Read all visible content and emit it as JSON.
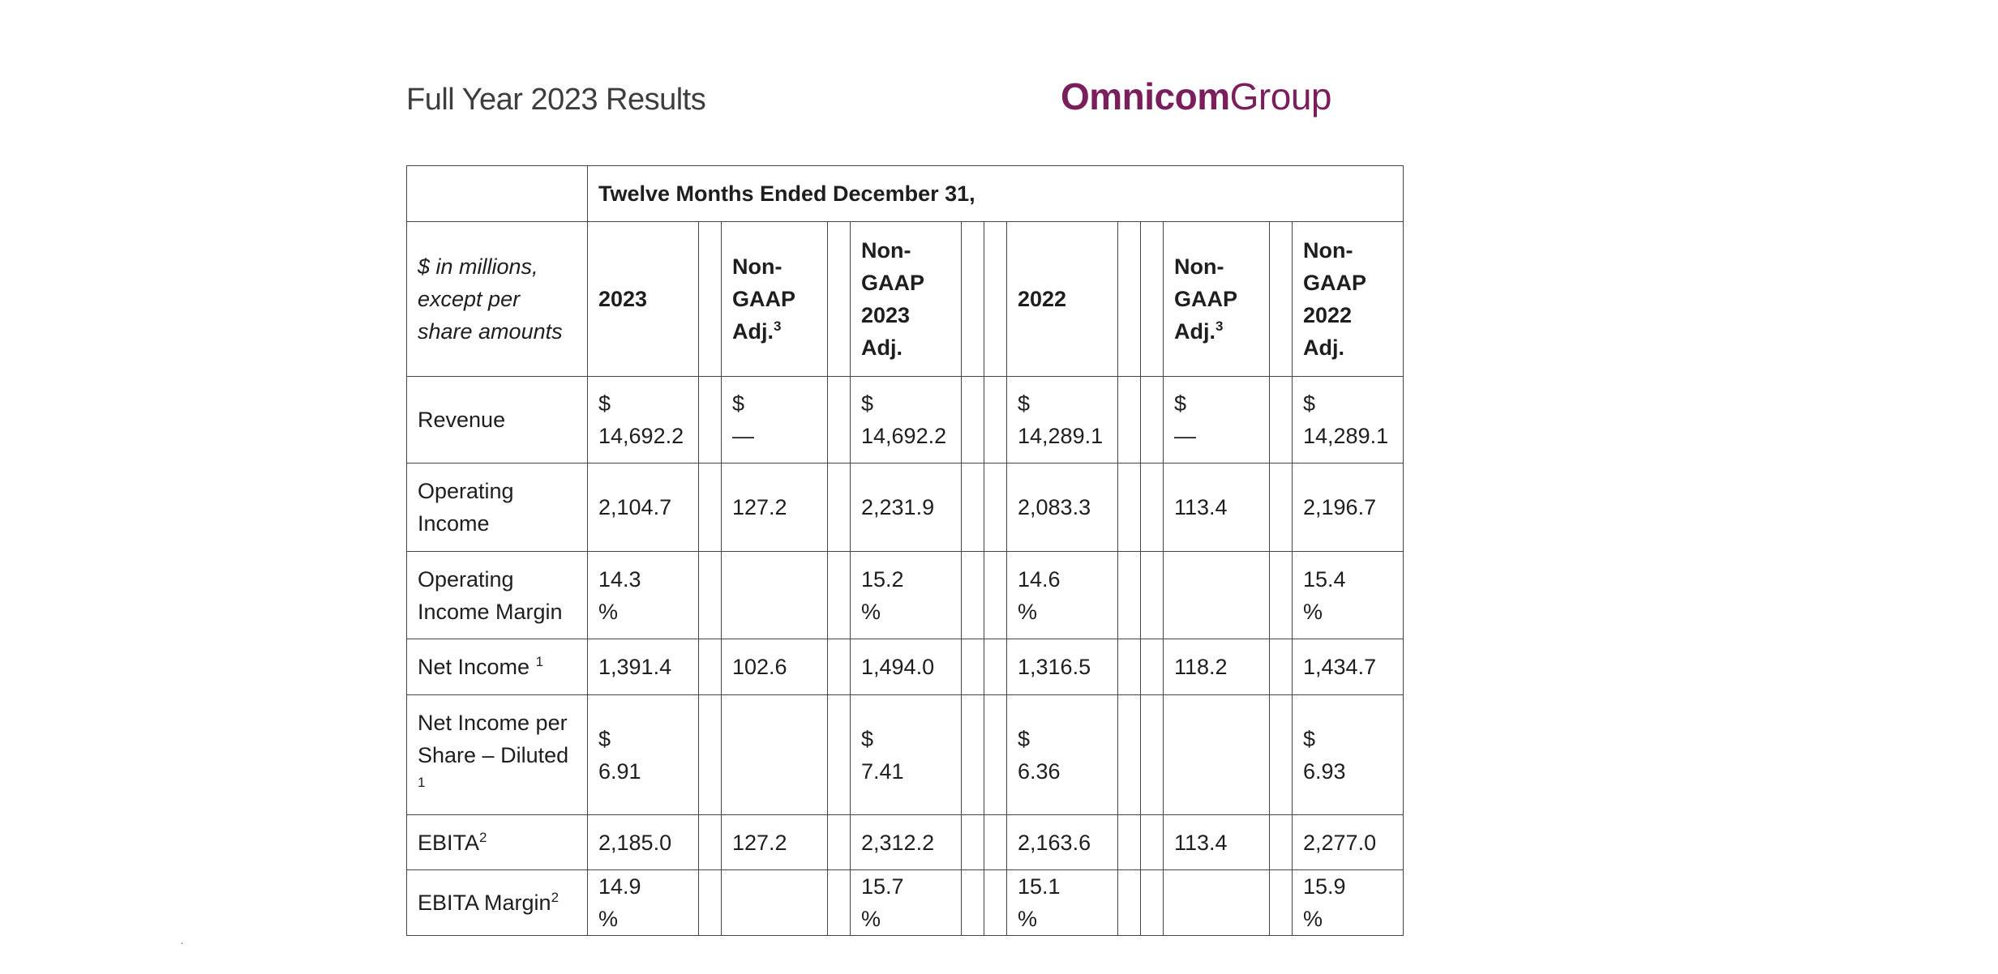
{
  "header": {
    "title": "Full Year 2023 Results",
    "logo_bold": "Omnicom",
    "logo_light": "Group"
  },
  "table": {
    "period_header": "Twelve Months Ended December 31,",
    "units_label": "$ in millions, except per share amounts",
    "columns": {
      "c2023": "2023",
      "adj_a_text": "Non-GAAP Adj.",
      "adj_a_sup": "3",
      "nongaap2023": "Non-GAAP 2023 Adj.",
      "c2022": "2022",
      "adj_b_text": "Non-GAAP Adj.",
      "adj_b_sup": "3",
      "nongaap2022": "Non-GAAP 2022 Adj."
    },
    "rows": [
      {
        "label": "Revenue",
        "sup": "",
        "v2023": "$ 14,692.2",
        "adj23": "$ —",
        "ng2023": "$ 14,692.2",
        "v2022": "$ 14,289.1",
        "adj22": "$ —",
        "ng2022": "$ 14,289.1"
      },
      {
        "label": "Operating Income",
        "sup": "",
        "v2023": "2,104.7",
        "adj23": "127.2",
        "ng2023": "2,231.9",
        "v2022": "2,083.3",
        "adj22": "113.4",
        "ng2022": "2,196.7"
      },
      {
        "label": "Operating Income Margin",
        "sup": "",
        "v2023": "14.3 %",
        "adj23": "",
        "ng2023": "15.2 %",
        "v2022": "14.6 %",
        "adj22": "",
        "ng2022": "15.4 %"
      },
      {
        "label": "Net Income ",
        "sup": "1",
        "v2023": "1,391.4",
        "adj23": "102.6",
        "ng2023": "1,494.0",
        "v2022": "1,316.5",
        "adj22": "118.2",
        "ng2022": "1,434.7"
      },
      {
        "label": "Net Income per Share – Diluted ",
        "sup": "1",
        "v2023": "$ 6.91",
        "adj23": "",
        "ng2023": "$ 7.41",
        "v2022": "$ 6.36",
        "adj22": "",
        "ng2022": "$ 6.93"
      },
      {
        "label": "EBITA",
        "sup": "2",
        "v2023": "2,185.0",
        "adj23": "127.2",
        "ng2023": "2,312.2",
        "v2022": "2,163.6",
        "adj22": "113.4",
        "ng2022": "2,277.0"
      },
      {
        "label": "EBITA Margin",
        "sup": "2",
        "v2023": "14.9 %",
        "adj23": "",
        "ng2023": "15.7 %",
        "v2022": "15.1 %",
        "adj22": "",
        "ng2022": "15.9 %"
      }
    ]
  }
}
